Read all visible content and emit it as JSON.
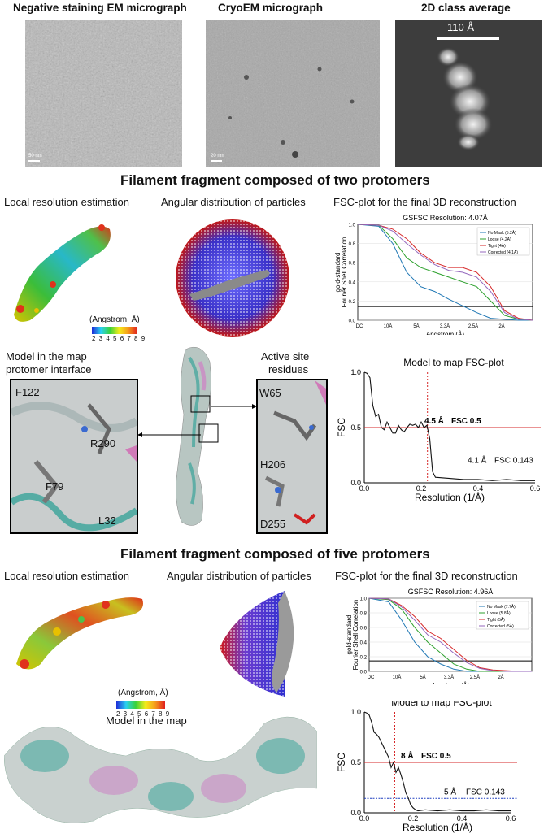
{
  "top_row": {
    "neg_title": "Negative staining EM micrograph",
    "cryo_title": "CryoEM micrograph",
    "class_title": "2D class average",
    "neg_scale": "50 nm",
    "cryo_scale": "20 nm",
    "class_scale": "110 Å"
  },
  "section1": {
    "title": "Filament fragment composed of two protomers",
    "local_res": "Local resolution estimation",
    "angular": "Angular distribution of particles",
    "fsc_title": "FSC-plot for the final 3D reconstruction",
    "colorbar_label": "(Angstrom, Å)",
    "colorbar_ticks": "2 3 4 5 6 7 8 9",
    "model_in_map": "Model in the map",
    "protomer_interface": "protomer interface",
    "active_site": "Active site",
    "residues": "residues",
    "interface_residues": [
      "F122",
      "R290",
      "F79",
      "L32"
    ],
    "active_residues": [
      "W65",
      "H206",
      "D255"
    ],
    "model_fsc_title": "Model to map FSC-plot"
  },
  "section2": {
    "title": "Filament fragment composed of five protomers",
    "local_res": "Local resolution estimation",
    "angular": "Angular distribution of particles",
    "fsc_title": "FSC-plot for the final 3D reconstruction",
    "colorbar_label": "(Angstrom, Å)",
    "colorbar_ticks": "2 3 4 5 6 7 8 9",
    "model_in_map": "Model in the map",
    "model_fsc_title": "Model to map FSC-plot"
  },
  "colors": {
    "red_line": "#d62728",
    "blue_line": "#1f3fbf",
    "mask1": "#1f77b4",
    "mask2": "#2ca02c",
    "mask3": "#d62728",
    "mask4": "#9467bd"
  },
  "chart_data": [
    {
      "type": "line",
      "title": "GSFSC Resolution: 4.07Å",
      "xlabel": "Angstrom (Å)",
      "ylabel": "gold-standard Fourier Shell Correlation",
      "x_ticks": [
        "DC",
        "10Å",
        "5Å",
        "3.3Å",
        "2.5Å",
        "2Å"
      ],
      "y_ticks": [
        0.0,
        0.2,
        0.4,
        0.6,
        0.8,
        1.0
      ],
      "ylim": [
        0,
        1
      ],
      "threshold": 0.143,
      "legend": [
        "No Mask (5.2Å)",
        "Loose (4.2Å)",
        "Tight (4Å)",
        "Corrected (4.1Å)"
      ],
      "legend_position": "top-right",
      "series": [
        {
          "name": "No Mask (5.2Å)",
          "x": [
            0,
            0.03,
            0.05,
            0.07,
            0.09,
            0.11,
            0.13,
            0.15,
            0.17,
            0.19,
            0.21,
            0.23,
            0.25
          ],
          "values": [
            1.0,
            0.98,
            0.8,
            0.5,
            0.35,
            0.3,
            0.22,
            0.15,
            0.08,
            0.02,
            0.01,
            0.0,
            0.0
          ]
        },
        {
          "name": "Loose (4.2Å)",
          "x": [
            0,
            0.03,
            0.05,
            0.07,
            0.09,
            0.11,
            0.13,
            0.15,
            0.17,
            0.19,
            0.21,
            0.23,
            0.25
          ],
          "values": [
            1.0,
            0.99,
            0.85,
            0.65,
            0.55,
            0.5,
            0.45,
            0.4,
            0.35,
            0.2,
            0.05,
            0.01,
            0.0
          ]
        },
        {
          "name": "Tight (4Å)",
          "x": [
            0,
            0.03,
            0.05,
            0.07,
            0.09,
            0.11,
            0.13,
            0.15,
            0.17,
            0.19,
            0.21,
            0.23,
            0.25
          ],
          "values": [
            1.0,
            0.99,
            0.95,
            0.85,
            0.7,
            0.6,
            0.55,
            0.55,
            0.5,
            0.35,
            0.1,
            0.02,
            0.0
          ]
        },
        {
          "name": "Corrected (4.1Å)",
          "x": [
            0,
            0.03,
            0.05,
            0.07,
            0.09,
            0.11,
            0.13,
            0.15,
            0.17,
            0.19,
            0.21,
            0.23,
            0.25
          ],
          "values": [
            1.0,
            0.99,
            0.93,
            0.8,
            0.68,
            0.58,
            0.52,
            0.5,
            0.45,
            0.3,
            0.08,
            0.01,
            0.0
          ]
        }
      ]
    },
    {
      "type": "line",
      "title": "Model to map FSC-plot",
      "xlabel": "Resolution (1/Å)",
      "ylabel": "FSC",
      "xlim": [
        0,
        0.6
      ],
      "ylim": [
        0,
        1
      ],
      "x_ticks": [
        0.0,
        0.2,
        0.4,
        0.6
      ],
      "y_ticks": [
        0.0,
        0.5,
        1.0
      ],
      "annotations": [
        "4.5 Å",
        "FSC 0.5",
        "4.1 Å",
        "FSC 0.143"
      ],
      "x": [
        0,
        0.01,
        0.02,
        0.03,
        0.04,
        0.05,
        0.06,
        0.07,
        0.08,
        0.09,
        0.1,
        0.11,
        0.12,
        0.13,
        0.14,
        0.15,
        0.16,
        0.17,
        0.18,
        0.19,
        0.2,
        0.21,
        0.22,
        0.23,
        0.24,
        0.25,
        0.3,
        0.35,
        0.4,
        0.45,
        0.5,
        0.55,
        0.6
      ],
      "values": [
        1.0,
        0.99,
        0.95,
        0.7,
        0.6,
        0.62,
        0.5,
        0.48,
        0.55,
        0.5,
        0.45,
        0.45,
        0.52,
        0.48,
        0.46,
        0.5,
        0.53,
        0.52,
        0.53,
        0.5,
        0.55,
        0.5,
        0.52,
        0.4,
        0.1,
        0.05,
        0.04,
        0.03,
        0.03,
        0.02,
        0.03,
        0.02,
        0.02
      ],
      "fsc_05": 0.5,
      "fsc_0143": 0.143,
      "cutoff_x": 0.222
    },
    {
      "type": "line",
      "title": "GSFSC Resolution: 4.96Å",
      "xlabel": "Angstrom (Å)",
      "ylabel": "gold-standard Fourier Shell Correlation",
      "x_ticks": [
        "DC",
        "10Å",
        "5Å",
        "3.3Å",
        "2.5Å",
        "2Å"
      ],
      "y_ticks": [
        0.0,
        0.2,
        0.4,
        0.6,
        0.8,
        1.0
      ],
      "ylim": [
        0,
        1
      ],
      "legend": [
        "No Mask (7.7Å)",
        "Loose (5.8Å)",
        "Tight (5Å)",
        "Corrected (5Å)"
      ],
      "legend_position": "top-right",
      "series": [
        {
          "name": "No Mask (7.7Å)",
          "x": [
            0,
            0.03,
            0.05,
            0.07,
            0.09,
            0.11,
            0.13,
            0.15,
            0.17,
            0.19,
            0.21,
            0.23,
            0.25
          ],
          "values": [
            1.0,
            0.95,
            0.7,
            0.4,
            0.2,
            0.1,
            0.03,
            0.0,
            0.0,
            0.0,
            0.0,
            0.0,
            0.0
          ]
        },
        {
          "name": "Loose (5.8Å)",
          "x": [
            0,
            0.03,
            0.05,
            0.07,
            0.09,
            0.11,
            0.13,
            0.15,
            0.17,
            0.19,
            0.21,
            0.23,
            0.25
          ],
          "values": [
            1.0,
            0.98,
            0.85,
            0.6,
            0.4,
            0.25,
            0.1,
            0.03,
            0.0,
            0.0,
            0.0,
            0.0,
            0.0
          ]
        },
        {
          "name": "Tight (5Å)",
          "x": [
            0,
            0.03,
            0.05,
            0.07,
            0.09,
            0.11,
            0.13,
            0.15,
            0.17,
            0.19,
            0.21,
            0.23,
            0.25
          ],
          "values": [
            1.0,
            0.99,
            0.9,
            0.75,
            0.55,
            0.45,
            0.3,
            0.15,
            0.05,
            0.02,
            0.01,
            0.0,
            0.0
          ]
        },
        {
          "name": "Corrected (5Å)",
          "x": [
            0,
            0.03,
            0.05,
            0.07,
            0.09,
            0.11,
            0.13,
            0.15,
            0.17,
            0.19,
            0.21,
            0.23,
            0.25
          ],
          "values": [
            1.0,
            0.99,
            0.88,
            0.7,
            0.5,
            0.4,
            0.25,
            0.12,
            0.04,
            0.01,
            0.0,
            0.0,
            0.0
          ]
        }
      ]
    },
    {
      "type": "line",
      "title": "Model to map FSC-plot",
      "xlabel": "Resolution (1/Å)",
      "ylabel": "FSC",
      "xlim": [
        0,
        0.6
      ],
      "ylim": [
        0,
        1
      ],
      "x_ticks": [
        0.0,
        0.2,
        0.4,
        0.6
      ],
      "y_ticks": [
        0.0,
        0.5,
        1.0
      ],
      "annotations": [
        "8 Å",
        "FSC 0.5",
        "5 Å",
        "FSC 0.143"
      ],
      "x": [
        0,
        0.01,
        0.02,
        0.03,
        0.04,
        0.05,
        0.06,
        0.07,
        0.08,
        0.09,
        0.1,
        0.11,
        0.12,
        0.13,
        0.14,
        0.15,
        0.16,
        0.17,
        0.18,
        0.19,
        0.2,
        0.21,
        0.22,
        0.25,
        0.3,
        0.35,
        0.4,
        0.45,
        0.5,
        0.55,
        0.6
      ],
      "values": [
        1.0,
        0.99,
        0.97,
        0.9,
        0.8,
        0.78,
        0.75,
        0.7,
        0.65,
        0.6,
        0.55,
        0.45,
        0.5,
        0.4,
        0.45,
        0.38,
        0.3,
        0.2,
        0.15,
        0.08,
        0.05,
        0.03,
        0.02,
        0.03,
        0.02,
        0.03,
        0.02,
        0.02,
        0.03,
        0.02,
        0.02
      ],
      "fsc_05": 0.5,
      "fsc_0143": 0.143,
      "cutoff_x": 0.125
    }
  ]
}
